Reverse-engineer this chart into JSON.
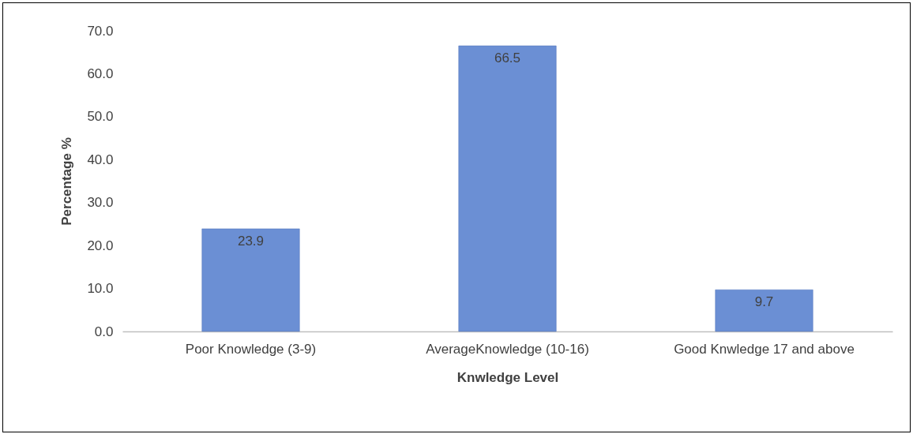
{
  "chart_data": {
    "type": "bar",
    "xlabel": "Knwledge Level",
    "ylabel": "Percentage %",
    "categories": [
      "Poor Knowledge (3-9)",
      "AverageKnowledge (10-16)",
      "Good Knwledge 17 and above"
    ],
    "values": [
      23.9,
      66.5,
      9.7
    ],
    "color": "#6b8fd4",
    "ylim": [
      0,
      70
    ],
    "yticks": [
      {
        "value": 0,
        "label": "0.0"
      },
      {
        "value": 10,
        "label": "10.0"
      },
      {
        "value": 20,
        "label": "20.0"
      },
      {
        "value": 30,
        "label": "30.0"
      },
      {
        "value": 40,
        "label": "40.0"
      },
      {
        "value": 50,
        "label": "50.0"
      },
      {
        "value": 60,
        "label": "60.0"
      },
      {
        "value": 70,
        "label": "70.0"
      }
    ],
    "data_labels": true,
    "grid": false
  }
}
